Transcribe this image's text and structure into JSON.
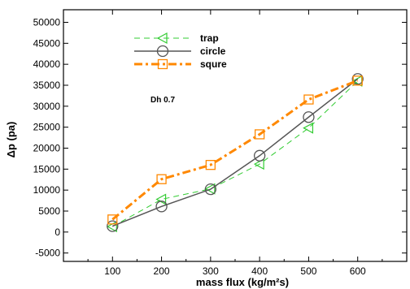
{
  "chart_data": {
    "type": "line",
    "xlabel": "mass flux (kg/m²s)",
    "ylabel": "Δp (pa)",
    "annotation": "Dh 0.7",
    "x": [
      100,
      200,
      300,
      400,
      500,
      600
    ],
    "xlim": [
      0,
      700
    ],
    "ylim": [
      -7000,
      53000
    ],
    "xticks": [
      100,
      200,
      300,
      400,
      500,
      600
    ],
    "yticks": [
      -5000,
      0,
      5000,
      10000,
      15000,
      20000,
      25000,
      30000,
      35000,
      40000,
      45000,
      50000
    ],
    "grid": false,
    "legend_position": "top-left",
    "series": [
      {
        "name": "trap",
        "values": [
          1300,
          7800,
          10300,
          16200,
          24800,
          36000
        ],
        "color": "#33cc33",
        "line": "dashed",
        "marker": "triangle-left"
      },
      {
        "name": "circle",
        "values": [
          1400,
          6100,
          10200,
          18200,
          27400,
          36500
        ],
        "color": "#555555",
        "line": "solid",
        "marker": "circle"
      },
      {
        "name": "squre",
        "values": [
          3000,
          12600,
          16000,
          23300,
          31600,
          36100
        ],
        "color": "#ff8800",
        "line": "dashdot",
        "marker": "square"
      }
    ]
  }
}
